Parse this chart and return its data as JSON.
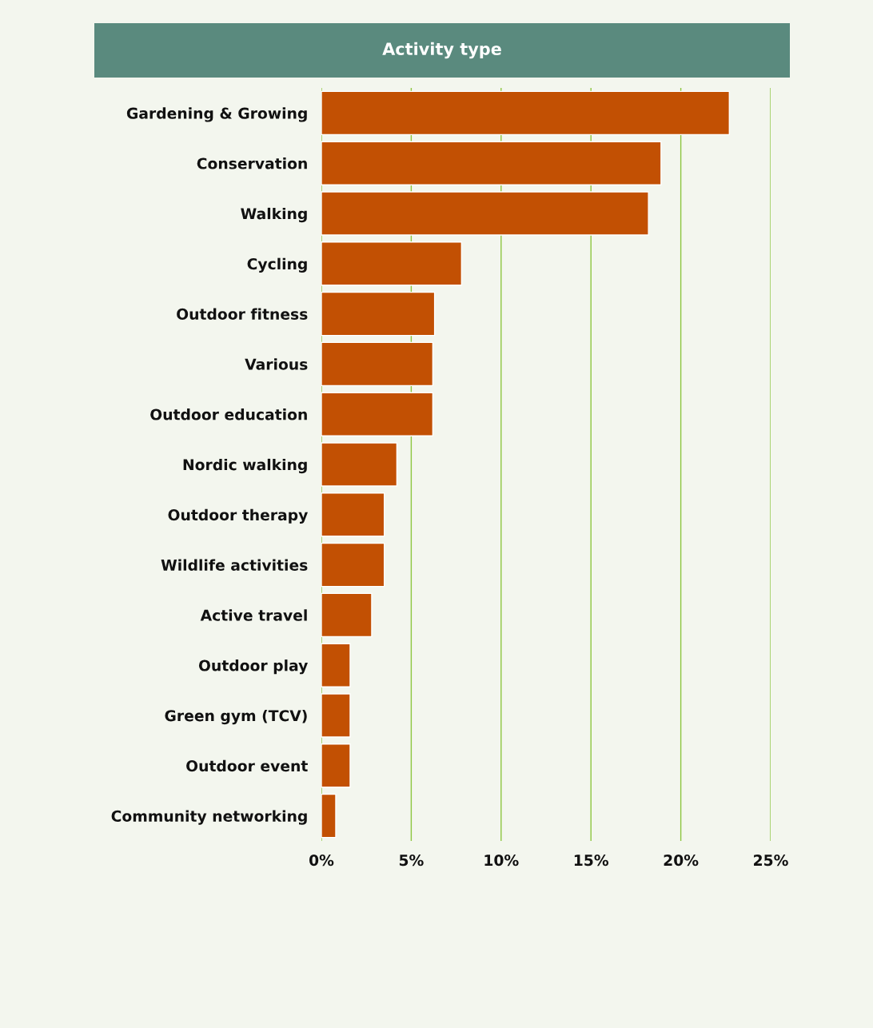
{
  "chart_data": {
    "type": "bar",
    "orientation": "horizontal",
    "title": "Activity type",
    "categories": [
      "Gardening & Growing",
      "Conservation",
      "Walking",
      "Cycling",
      "Outdoor fitness",
      "Various",
      "Outdoor education",
      "Nordic walking",
      "Outdoor therapy",
      "Wildlife activities",
      "Active travel",
      "Outdoor play",
      "Green gym (TCV)",
      "Outdoor event",
      "Community networking"
    ],
    "values": [
      22.7,
      18.9,
      18.2,
      7.8,
      6.3,
      6.2,
      6.2,
      4.2,
      3.5,
      3.5,
      2.8,
      1.6,
      1.6,
      1.6,
      0.8
    ],
    "color": "#c25003",
    "xlim": [
      0,
      25
    ],
    "xticks": [
      {
        "value": 0,
        "label": "0%"
      },
      {
        "value": 5,
        "label": "5%"
      },
      {
        "value": 10,
        "label": "10%"
      },
      {
        "value": 15,
        "label": "15%"
      },
      {
        "value": 20,
        "label": "20%"
      },
      {
        "value": 25,
        "label": "25%"
      }
    ],
    "grid": "x"
  }
}
